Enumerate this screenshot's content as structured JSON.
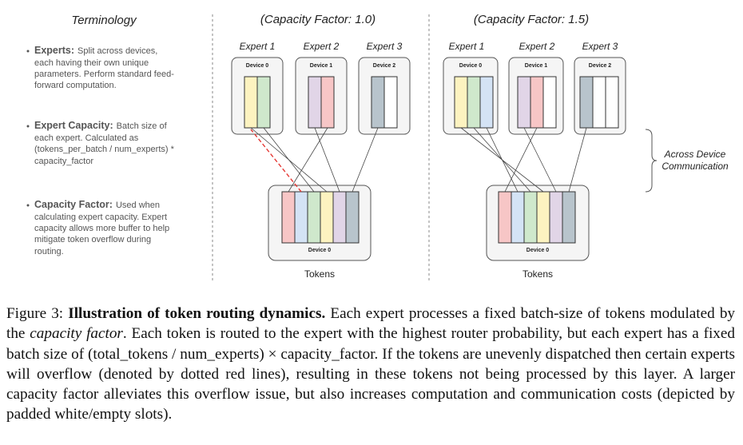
{
  "terminology": {
    "title": "Terminology",
    "items": [
      {
        "head": "Experts:",
        "first": "Split across devices,",
        "rest": [
          "each having their own unique",
          "parameters. Perform standard feed-",
          "forward computation."
        ]
      },
      {
        "head": "Expert Capacity:",
        "first": "Batch size of",
        "rest": [
          "each expert. Calculated as",
          "(tokens_per_batch / num_experts) *",
          "capacity_factor"
        ]
      },
      {
        "head": "Capacity Factor:",
        "first": "Used when",
        "rest": [
          "calculating expert capacity. Expert",
          "capacity allows more buffer to help",
          "mitigate token overflow during",
          "routing."
        ]
      }
    ]
  },
  "panels": [
    {
      "title": "(Capacity Factor: 1.0)",
      "experts": [
        {
          "label": "Expert 1",
          "device": "Device 0",
          "slots": [
            "#fdf3c0",
            "#cfe8cc"
          ]
        },
        {
          "label": "Expert 2",
          "device": "Device 1",
          "slots": [
            "#e1d5e7",
            "#f7c6c6"
          ]
        },
        {
          "label": "Expert 3",
          "device": "Device 2",
          "slots": [
            "#b8c4cc",
            "#ffffff"
          ]
        }
      ],
      "tokens": {
        "device": "Device 0",
        "label": "Tokens",
        "slots": [
          "#f7c6c6",
          "#d4e3f5",
          "#cfe8cc",
          "#fdf3c0",
          "#e1d5e7",
          "#b8c4cc"
        ]
      }
    },
    {
      "title": "(Capacity Factor: 1.5)",
      "experts": [
        {
          "label": "Expert 1",
          "device": "Device 0",
          "slots": [
            "#fdf3c0",
            "#cfe8cc",
            "#d4e3f5"
          ]
        },
        {
          "label": "Expert 2",
          "device": "Device 1",
          "slots": [
            "#e1d5e7",
            "#f7c6c6",
            "#ffffff"
          ]
        },
        {
          "label": "Expert 3",
          "device": "Device 2",
          "slots": [
            "#b8c4cc",
            "#ffffff",
            "#ffffff"
          ]
        }
      ],
      "tokens": {
        "device": "Device 0",
        "label": "Tokens",
        "slots": [
          "#f7c6c6",
          "#d4e3f5",
          "#cfe8cc",
          "#fdf3c0",
          "#e1d5e7",
          "#b8c4cc"
        ]
      }
    }
  ],
  "across_label": [
    "Across Device",
    "Communication"
  ],
  "caption": {
    "label": "Figure 3:",
    "bold_title": "Illustration of token routing dynamics.",
    "part1": "Each expert processes a fixed batch-size of tokens modulated by the",
    "italic_term": "capacity factor",
    "part2": ". Each token is routed to the expert with the highest router probability, but each expert has a fixed batch size of (total_tokens / num_experts) × capacity_factor. If the tokens are unevenly dispatched then certain experts will overflow (denoted by dotted red lines), resulting in these tokens not being processed by this layer. A larger capacity factor alleviates this overflow issue, but also increases computation and communication costs (depicted by padded white/empty slots)."
  }
}
